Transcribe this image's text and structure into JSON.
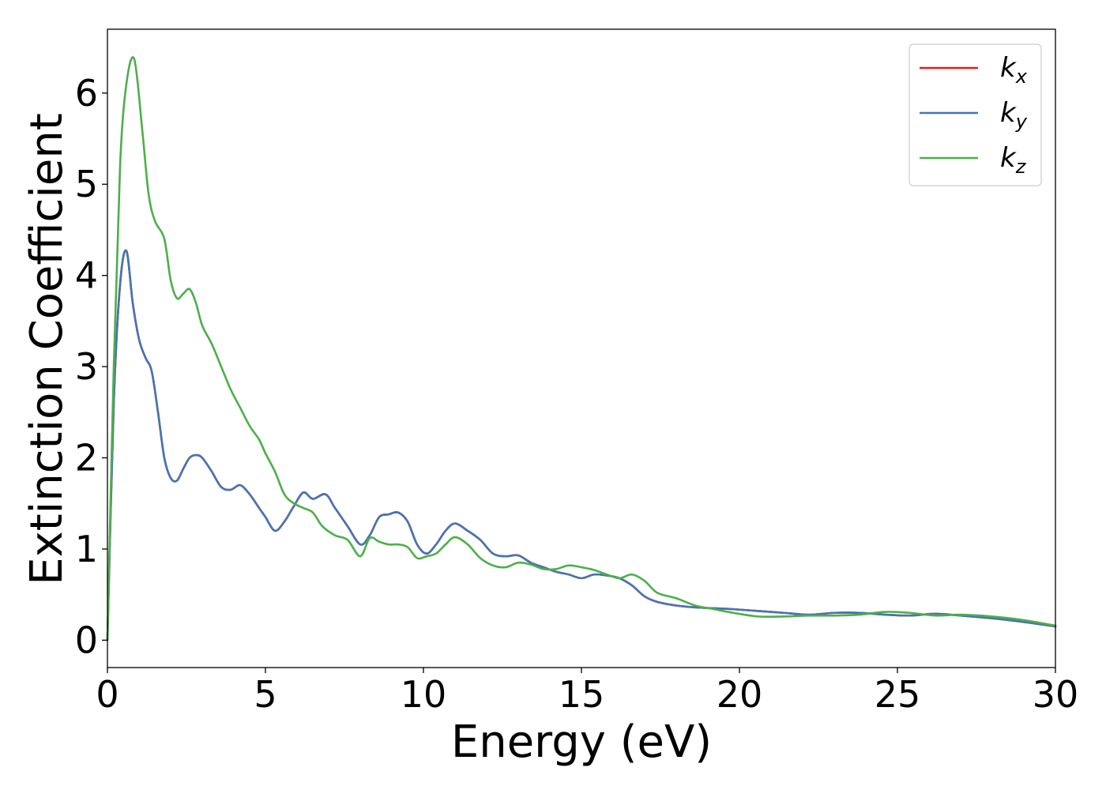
{
  "chart_data": {
    "type": "line",
    "xlabel": "Energy (eV)",
    "ylabel": "Extinction Coefficient",
    "xlim": [
      0,
      30
    ],
    "ylim": [
      -0.3,
      6.7
    ],
    "xticks": [
      0,
      5,
      10,
      15,
      20,
      25,
      30
    ],
    "yticks": [
      0,
      1,
      2,
      3,
      4,
      5,
      6
    ],
    "grid": false,
    "legend_position": "top-right",
    "series": [
      {
        "name": "k",
        "subscript": "x",
        "color": "#e41a1c",
        "x": [
          0,
          0.2,
          0.4,
          0.6,
          0.8,
          1.0,
          1.2,
          1.4,
          1.6,
          1.8,
          2.0,
          2.2,
          2.4,
          2.6,
          2.8,
          3.0,
          3.3,
          3.6,
          3.9,
          4.2,
          4.5,
          4.8,
          5.0,
          5.3,
          5.6,
          5.9,
          6.2,
          6.5,
          6.9,
          7.2,
          7.6,
          8.0,
          8.3,
          8.6,
          8.9,
          9.2,
          9.5,
          9.8,
          10.1,
          10.4,
          10.7,
          11.0,
          11.4,
          11.8,
          12.2,
          12.6,
          13.0,
          13.4,
          13.8,
          14.2,
          14.6,
          15.0,
          15.4,
          15.8,
          16.2,
          16.6,
          17.0,
          17.4,
          18.0,
          18.6,
          19.2,
          19.8,
          20.6,
          21.4,
          22.2,
          23.0,
          23.8,
          24.6,
          25.4,
          26.2,
          27.0,
          28.0,
          29.0,
          30.0
        ],
        "y": [
          0,
          2.6,
          3.9,
          4.27,
          3.7,
          3.3,
          3.1,
          2.95,
          2.5,
          2.0,
          1.78,
          1.75,
          1.88,
          2.0,
          2.03,
          2.0,
          1.85,
          1.68,
          1.65,
          1.7,
          1.6,
          1.45,
          1.35,
          1.2,
          1.3,
          1.47,
          1.62,
          1.55,
          1.6,
          1.45,
          1.25,
          1.05,
          1.15,
          1.35,
          1.38,
          1.4,
          1.3,
          1.05,
          0.95,
          1.05,
          1.2,
          1.28,
          1.2,
          1.1,
          0.95,
          0.92,
          0.93,
          0.85,
          0.8,
          0.75,
          0.72,
          0.68,
          0.72,
          0.71,
          0.68,
          0.6,
          0.48,
          0.42,
          0.38,
          0.36,
          0.35,
          0.34,
          0.32,
          0.3,
          0.28,
          0.3,
          0.3,
          0.28,
          0.27,
          0.29,
          0.27,
          0.24,
          0.2,
          0.15
        ]
      },
      {
        "name": "k",
        "subscript": "y",
        "color": "#4575b4",
        "x": [
          0,
          0.2,
          0.4,
          0.6,
          0.8,
          1.0,
          1.2,
          1.4,
          1.6,
          1.8,
          2.0,
          2.2,
          2.4,
          2.6,
          2.8,
          3.0,
          3.3,
          3.6,
          3.9,
          4.2,
          4.5,
          4.8,
          5.0,
          5.3,
          5.6,
          5.9,
          6.2,
          6.5,
          6.9,
          7.2,
          7.6,
          8.0,
          8.3,
          8.6,
          8.9,
          9.2,
          9.5,
          9.8,
          10.1,
          10.4,
          10.7,
          11.0,
          11.4,
          11.8,
          12.2,
          12.6,
          13.0,
          13.4,
          13.8,
          14.2,
          14.6,
          15.0,
          15.4,
          15.8,
          16.2,
          16.6,
          17.0,
          17.4,
          18.0,
          18.6,
          19.2,
          19.8,
          20.6,
          21.4,
          22.2,
          23.0,
          23.8,
          24.6,
          25.4,
          26.2,
          27.0,
          28.0,
          29.0,
          30.0
        ],
        "y": [
          0,
          2.6,
          3.9,
          4.27,
          3.7,
          3.3,
          3.1,
          2.95,
          2.5,
          2.0,
          1.78,
          1.75,
          1.88,
          2.0,
          2.03,
          2.0,
          1.85,
          1.68,
          1.65,
          1.7,
          1.6,
          1.45,
          1.35,
          1.2,
          1.3,
          1.47,
          1.62,
          1.55,
          1.6,
          1.45,
          1.25,
          1.05,
          1.15,
          1.35,
          1.38,
          1.4,
          1.3,
          1.05,
          0.95,
          1.05,
          1.2,
          1.28,
          1.2,
          1.1,
          0.95,
          0.92,
          0.93,
          0.85,
          0.8,
          0.75,
          0.72,
          0.68,
          0.72,
          0.71,
          0.68,
          0.6,
          0.48,
          0.42,
          0.38,
          0.36,
          0.35,
          0.34,
          0.32,
          0.3,
          0.28,
          0.3,
          0.3,
          0.28,
          0.27,
          0.29,
          0.27,
          0.24,
          0.2,
          0.15
        ]
      },
      {
        "name": "k",
        "subscript": "z",
        "color": "#4daf4a",
        "x": [
          0,
          0.2,
          0.4,
          0.6,
          0.85,
          1.1,
          1.3,
          1.5,
          1.8,
          2.0,
          2.2,
          2.4,
          2.6,
          2.8,
          3.0,
          3.3,
          3.6,
          3.9,
          4.2,
          4.5,
          4.8,
          5.0,
          5.3,
          5.6,
          5.9,
          6.2,
          6.5,
          6.8,
          7.2,
          7.6,
          8.0,
          8.3,
          8.6,
          8.9,
          9.2,
          9.5,
          9.8,
          10.1,
          10.4,
          10.7,
          11.0,
          11.4,
          11.8,
          12.2,
          12.6,
          13.0,
          13.4,
          13.8,
          14.2,
          14.6,
          15.0,
          15.4,
          15.8,
          16.2,
          16.6,
          17.0,
          17.4,
          18.0,
          18.6,
          19.2,
          19.8,
          20.6,
          21.4,
          22.2,
          23.0,
          23.8,
          24.6,
          25.4,
          26.2,
          27.0,
          28.0,
          29.0,
          30.0
        ],
        "y": [
          0,
          3.0,
          5.2,
          6.1,
          6.37,
          5.6,
          4.9,
          4.6,
          4.4,
          3.95,
          3.75,
          3.8,
          3.85,
          3.7,
          3.45,
          3.25,
          3.0,
          2.75,
          2.55,
          2.35,
          2.2,
          2.05,
          1.85,
          1.6,
          1.5,
          1.45,
          1.4,
          1.25,
          1.15,
          1.1,
          0.92,
          1.12,
          1.08,
          1.05,
          1.05,
          1.02,
          0.9,
          0.92,
          0.95,
          1.05,
          1.13,
          1.05,
          0.9,
          0.82,
          0.8,
          0.85,
          0.83,
          0.78,
          0.78,
          0.82,
          0.8,
          0.77,
          0.72,
          0.68,
          0.72,
          0.65,
          0.52,
          0.46,
          0.38,
          0.34,
          0.3,
          0.26,
          0.26,
          0.27,
          0.27,
          0.28,
          0.31,
          0.3,
          0.27,
          0.28,
          0.26,
          0.22,
          0.16
        ]
      }
    ]
  }
}
